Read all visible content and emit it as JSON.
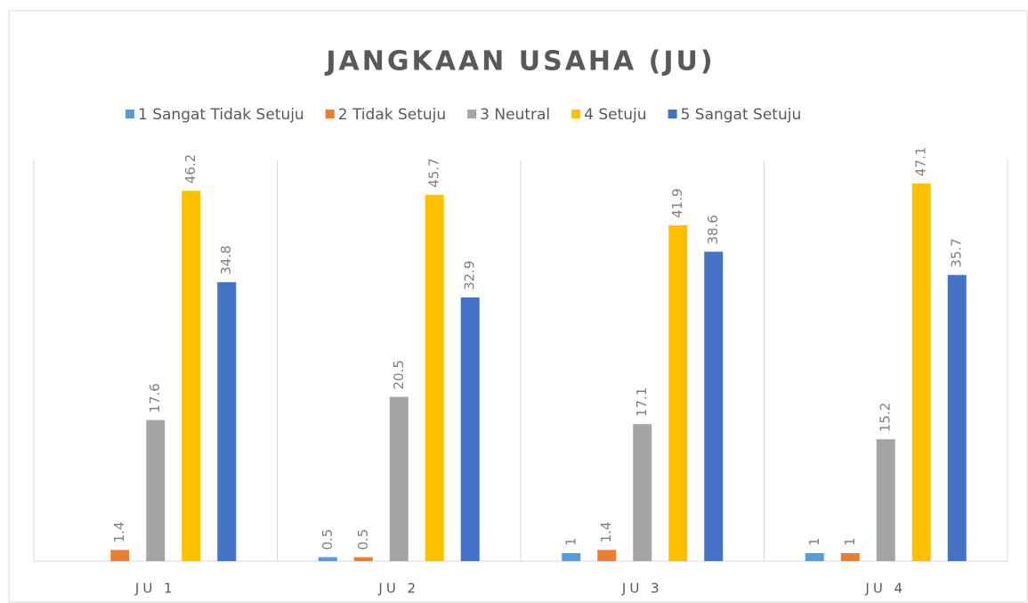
{
  "chart_data": {
    "type": "bar",
    "title": "JANGKAAN USAHA (JU)",
    "categories": [
      "JU 1",
      "JU 2",
      "JU 3",
      "JU 4"
    ],
    "series": [
      {
        "name": "1 Sangat Tidak Setuju",
        "color": "#5b9bd5",
        "values": [
          null,
          0.5,
          1,
          1
        ]
      },
      {
        "name": "2 Tidak Setuju",
        "color": "#ed7d31",
        "values": [
          1.4,
          0.5,
          1.4,
          1
        ]
      },
      {
        "name": "3 Neutral",
        "color": "#a5a5a5",
        "values": [
          17.6,
          20.5,
          17.1,
          15.2
        ]
      },
      {
        "name": "4 Setuju",
        "color": "#ffc000",
        "values": [
          46.2,
          45.7,
          41.9,
          47.1
        ]
      },
      {
        "name": "5 Sangat Setuju",
        "color": "#4472c4",
        "values": [
          34.8,
          32.9,
          38.6,
          35.7
        ]
      }
    ],
    "ylim": [
      0,
      50
    ],
    "legend": "top"
  }
}
